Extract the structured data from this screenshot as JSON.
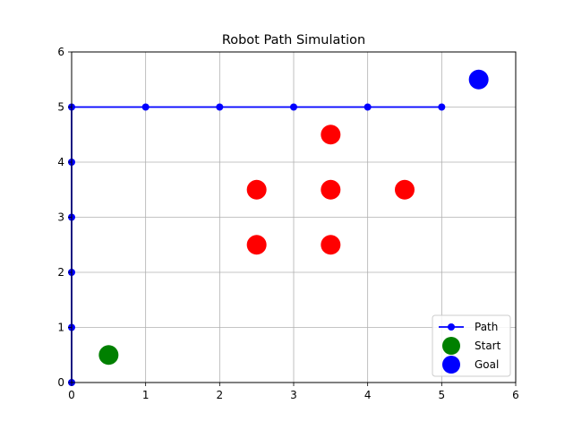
{
  "chart_data": {
    "type": "scatter",
    "title": "Robot Path Simulation",
    "xlabel": "",
    "ylabel": "",
    "xlim": [
      0,
      6
    ],
    "ylim": [
      0,
      6
    ],
    "x_ticks": [
      0,
      1,
      2,
      3,
      4,
      5,
      6
    ],
    "y_ticks": [
      0,
      1,
      2,
      3,
      4,
      5,
      6
    ],
    "grid": true,
    "legend_position": "lower-right",
    "series": [
      {
        "name": "Path",
        "kind": "line-markers",
        "color": "#0000ff",
        "points": [
          [
            0,
            0
          ],
          [
            0,
            1
          ],
          [
            0,
            2
          ],
          [
            0,
            3
          ],
          [
            0,
            4
          ],
          [
            0,
            5
          ],
          [
            1,
            5
          ],
          [
            2,
            5
          ],
          [
            3,
            5
          ],
          [
            4,
            5
          ],
          [
            5,
            5
          ]
        ]
      },
      {
        "name": "Start",
        "kind": "point",
        "color": "#008000",
        "points": [
          [
            0.5,
            0.5
          ]
        ]
      },
      {
        "name": "Goal",
        "kind": "point",
        "color": "#0000ff",
        "points": [
          [
            5.5,
            5.5
          ]
        ]
      }
    ],
    "obstacles": {
      "color": "#ff0000",
      "points": [
        [
          2.5,
          2.5
        ],
        [
          2.5,
          3.5
        ],
        [
          3.5,
          2.5
        ],
        [
          3.5,
          3.5
        ],
        [
          3.5,
          4.5
        ],
        [
          4.5,
          3.5
        ]
      ]
    }
  }
}
